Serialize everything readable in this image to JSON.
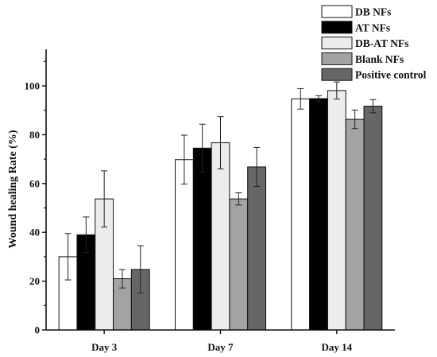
{
  "chart_data": {
    "type": "bar",
    "ylabel": "Wound healing Rate (%)",
    "xlabel": "",
    "ylim": [
      0,
      115
    ],
    "yticks": [
      0,
      20,
      40,
      60,
      80,
      100
    ],
    "categories": [
      "Day 3",
      "Day 7",
      "Day 14"
    ],
    "legend_position": "top-right",
    "series": [
      {
        "name": "DB NFs",
        "color": "#ffffff",
        "values": [
          30,
          69.8,
          94.7
        ],
        "errors": [
          9.5,
          10,
          4.2
        ]
      },
      {
        "name": "AT  NFs",
        "color": "#000000",
        "values": [
          39,
          74.5,
          94.8
        ],
        "errors": [
          7.3,
          9.8,
          1.2
        ]
      },
      {
        "name": "DB-AT  NFs",
        "color": "#ececec",
        "values": [
          53.7,
          76.7,
          98.1
        ],
        "errors": [
          11.5,
          10.7,
          3.5
        ]
      },
      {
        "name": "Blank  NFs",
        "color": "#a3a3a3",
        "values": [
          21,
          53.7,
          86.3
        ],
        "errors": [
          3.8,
          2.5,
          3.8
        ]
      },
      {
        "name": "Positive control",
        "color": "#666666",
        "values": [
          24.8,
          66.8,
          91.7
        ],
        "errors": [
          9.7,
          8,
          2.7
        ]
      }
    ]
  }
}
